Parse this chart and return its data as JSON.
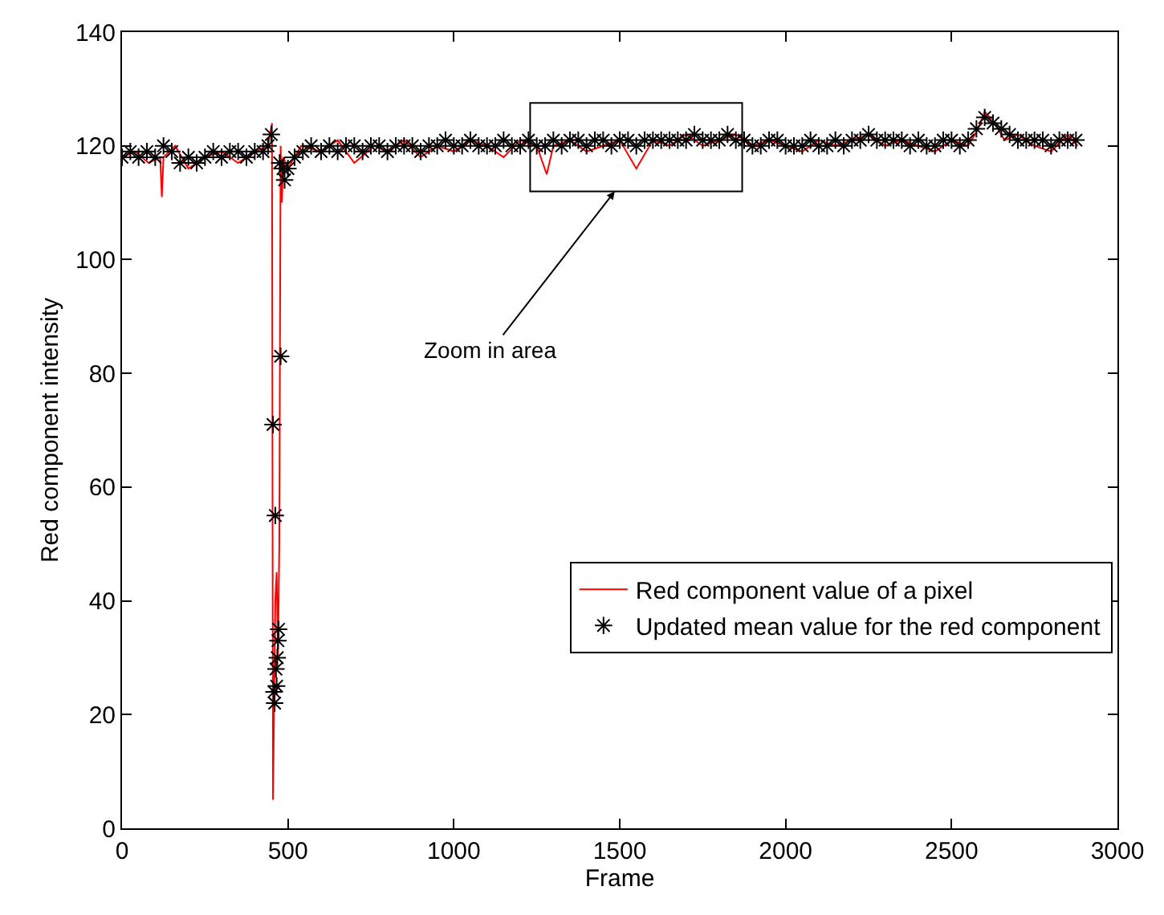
{
  "chart_data": {
    "type": "line",
    "xlabel": "Frame",
    "ylabel": "Red component intensity",
    "xlim": [
      0,
      3000
    ],
    "xticks": [
      0,
      500,
      1000,
      1500,
      2000,
      2500,
      3000
    ],
    "ylim": [
      0,
      140
    ],
    "yticks": [
      0,
      20,
      40,
      60,
      80,
      100,
      120,
      140
    ],
    "legend": "bottom right",
    "annotations": [
      "Zoom in area"
    ],
    "series": [
      {
        "name": "Red component value of a pixel",
        "color": "#ff0000",
        "marker": "none",
        "line_style": "solid",
        "x": [
          0,
          40,
          80,
          115,
          120,
          125,
          160,
          200,
          250,
          300,
          350,
          400,
          440,
          452,
          455,
          458,
          462,
          466,
          470,
          474,
          478,
          482,
          486,
          500,
          540,
          600,
          650,
          700,
          760,
          800,
          850,
          900,
          950,
          1000,
          1050,
          1100,
          1150,
          1200,
          1250,
          1280,
          1300,
          1350,
          1400,
          1450,
          1500,
          1550,
          1600,
          1650,
          1700,
          1750,
          1800,
          1850,
          1900,
          1950,
          2000,
          2050,
          2100,
          2150,
          2200,
          2250,
          2300,
          2350,
          2400,
          2450,
          2500,
          2550,
          2580,
          2600,
          2630,
          2660,
          2700,
          2750,
          2800,
          2850,
          2880
        ],
        "values": [
          118,
          119,
          117,
          118,
          111,
          118,
          120,
          116,
          118,
          119,
          117,
          119,
          120,
          124,
          5,
          20,
          40,
          45,
          30,
          50,
          120,
          110,
          118,
          116,
          120,
          119,
          121,
          117,
          120,
          119,
          121,
          118,
          120,
          119,
          121,
          120,
          118,
          121,
          120,
          115,
          120,
          121,
          119,
          120,
          121,
          116,
          121,
          120,
          122,
          120,
          121,
          122,
          120,
          121,
          120,
          119,
          121,
          120,
          121,
          122,
          120,
          121,
          120,
          119,
          121,
          120,
          123,
          126,
          124,
          121,
          122,
          120,
          119,
          122,
          120
        ]
      },
      {
        "name": "Updated mean value for the red component",
        "type": "scatter",
        "color": "#000000",
        "marker": "cross",
        "x": [
          0,
          25,
          50,
          75,
          100,
          125,
          150,
          175,
          200,
          225,
          250,
          275,
          300,
          325,
          350,
          375,
          400,
          425,
          440,
          450,
          455,
          458,
          460,
          462,
          464,
          466,
          468,
          470,
          472,
          475,
          478,
          485,
          490,
          500,
          520,
          545,
          570,
          600,
          625,
          650,
          675,
          700,
          725,
          750,
          775,
          800,
          825,
          850,
          875,
          900,
          925,
          950,
          975,
          1000,
          1025,
          1050,
          1075,
          1100,
          1125,
          1150,
          1175,
          1200,
          1225,
          1250,
          1275,
          1300,
          1325,
          1350,
          1375,
          1400,
          1425,
          1450,
          1475,
          1500,
          1525,
          1550,
          1575,
          1600,
          1625,
          1650,
          1675,
          1700,
          1725,
          1750,
          1775,
          1800,
          1825,
          1850,
          1875,
          1900,
          1925,
          1950,
          1975,
          2000,
          2025,
          2050,
          2075,
          2100,
          2125,
          2150,
          2175,
          2200,
          2225,
          2250,
          2275,
          2300,
          2325,
          2350,
          2375,
          2400,
          2425,
          2450,
          2475,
          2500,
          2525,
          2550,
          2575,
          2600,
          2625,
          2650,
          2675,
          2700,
          2725,
          2750,
          2775,
          2800,
          2825,
          2850,
          2875
        ],
        "values": [
          118,
          119,
          118,
          119,
          118,
          120,
          119,
          117,
          118,
          117,
          118,
          119,
          118,
          119,
          119,
          118,
          119,
          119,
          120,
          122,
          71,
          24,
          22,
          55,
          28,
          25,
          30,
          33,
          35,
          117,
          83,
          116,
          114,
          116,
          118,
          119,
          120,
          119,
          120,
          119,
          120,
          120,
          119,
          120,
          120,
          119,
          120,
          120,
          120,
          119,
          120,
          120,
          121,
          120,
          120,
          121,
          120,
          120,
          120,
          121,
          120,
          120,
          121,
          120,
          120,
          121,
          120,
          121,
          121,
          120,
          121,
          121,
          120,
          121,
          121,
          120,
          121,
          121,
          121,
          121,
          121,
          121,
          122,
          121,
          121,
          121,
          122,
          121,
          121,
          120,
          120,
          121,
          121,
          120,
          120,
          120,
          121,
          120,
          120,
          121,
          120,
          121,
          121,
          122,
          121,
          121,
          121,
          121,
          120,
          121,
          120,
          120,
          121,
          121,
          120,
          121,
          123,
          125,
          124,
          123,
          122,
          121,
          121,
          121,
          121,
          120,
          121,
          121,
          121
        ]
      }
    ]
  }
}
